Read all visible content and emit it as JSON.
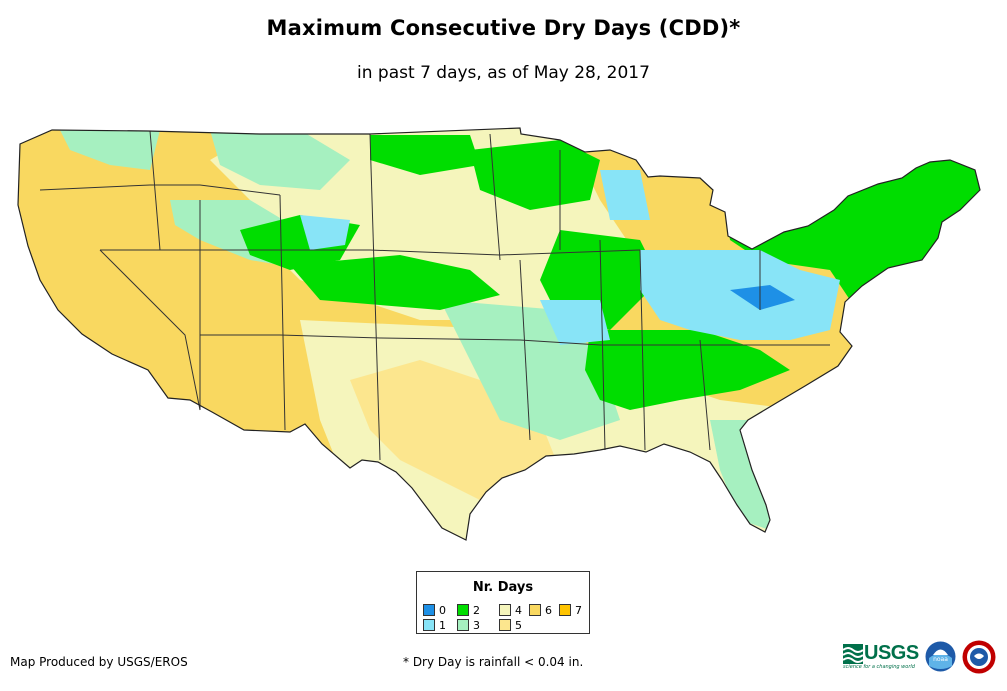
{
  "title": "Maximum Consecutive Dry Days (CDD)*",
  "subtitle": "in past 7 days, as of May 28, 2017",
  "legend": {
    "title": "Nr. Days",
    "items": [
      {
        "label": "0",
        "color": "#1e90e6"
      },
      {
        "label": "2",
        "color": "#00dd00"
      },
      {
        "label": "4",
        "color": "#f5f5bc"
      },
      {
        "label": "6",
        "color": "#f9d860"
      },
      {
        "label": "7",
        "color": "#ffc400"
      },
      {
        "label": "1",
        "color": "#88e4f7"
      },
      {
        "label": "3",
        "color": "#a6f0c0"
      },
      {
        "label": "5",
        "color": "#fce68e"
      }
    ]
  },
  "producer": "Map Produced by USGS/EROS",
  "footnote": "* Dry Day is rainfall < 0.04 in.",
  "logos": {
    "usgs": {
      "text": "USGS",
      "tagline": "science for a changing world"
    },
    "noaa": {
      "name": "noaa"
    },
    "nws": {
      "name": "nws"
    }
  }
}
